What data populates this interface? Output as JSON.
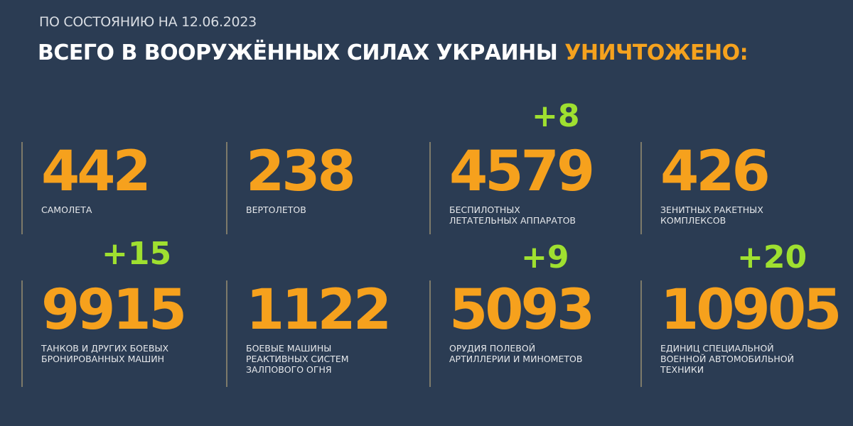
{
  "header": {
    "date_line": "ПО СОСТОЯНИЮ НА 12.06.2023",
    "title_main": "ВСЕГО В ВООРУЖЁННЫХ СИЛАХ УКРАИНЫ",
    "title_highlight": "УНИЧТОЖЕНО:"
  },
  "colors": {
    "background": "#2b3c53",
    "number": "#f6a11d",
    "delta": "#9fe030",
    "text": "#ffffff"
  },
  "stats": [
    {
      "value": "442",
      "label": "САМОЛЕТА",
      "delta": ""
    },
    {
      "value": "238",
      "label": "ВЕРТОЛЕТОВ",
      "delta": ""
    },
    {
      "value": "4579",
      "label": "БЕСПИЛОТНЫХ\nЛЕТАТЕЛЬНЫХ АППАРАТОВ",
      "delta": "+8"
    },
    {
      "value": "426",
      "label": "ЗЕНИТНЫХ РАКЕТНЫХ\nКОМПЛЕКСОВ",
      "delta": ""
    },
    {
      "value": "9915",
      "label": "ТАНКОВ И ДРУГИХ БОЕВЫХ\nБРОНИРОВАННЫХ МАШИН",
      "delta": "+15"
    },
    {
      "value": "1122",
      "label": "БОЕВЫЕ МАШИНЫ\nРЕАКТИВНЫХ СИСТЕМ\nЗАЛПОВОГО ОГНЯ",
      "delta": ""
    },
    {
      "value": "5093",
      "label": "ОРУДИЯ ПОЛЕВОЙ\nАРТИЛЛЕРИИ И МИНОМЕТОВ",
      "delta": "+9"
    },
    {
      "value": "10905",
      "label": "ЕДИНИЦ СПЕЦИАЛЬНОЙ\nВОЕННОЙ АВТОМОБИЛЬНОЙ\nТЕХНИКИ",
      "delta": "+20"
    }
  ]
}
